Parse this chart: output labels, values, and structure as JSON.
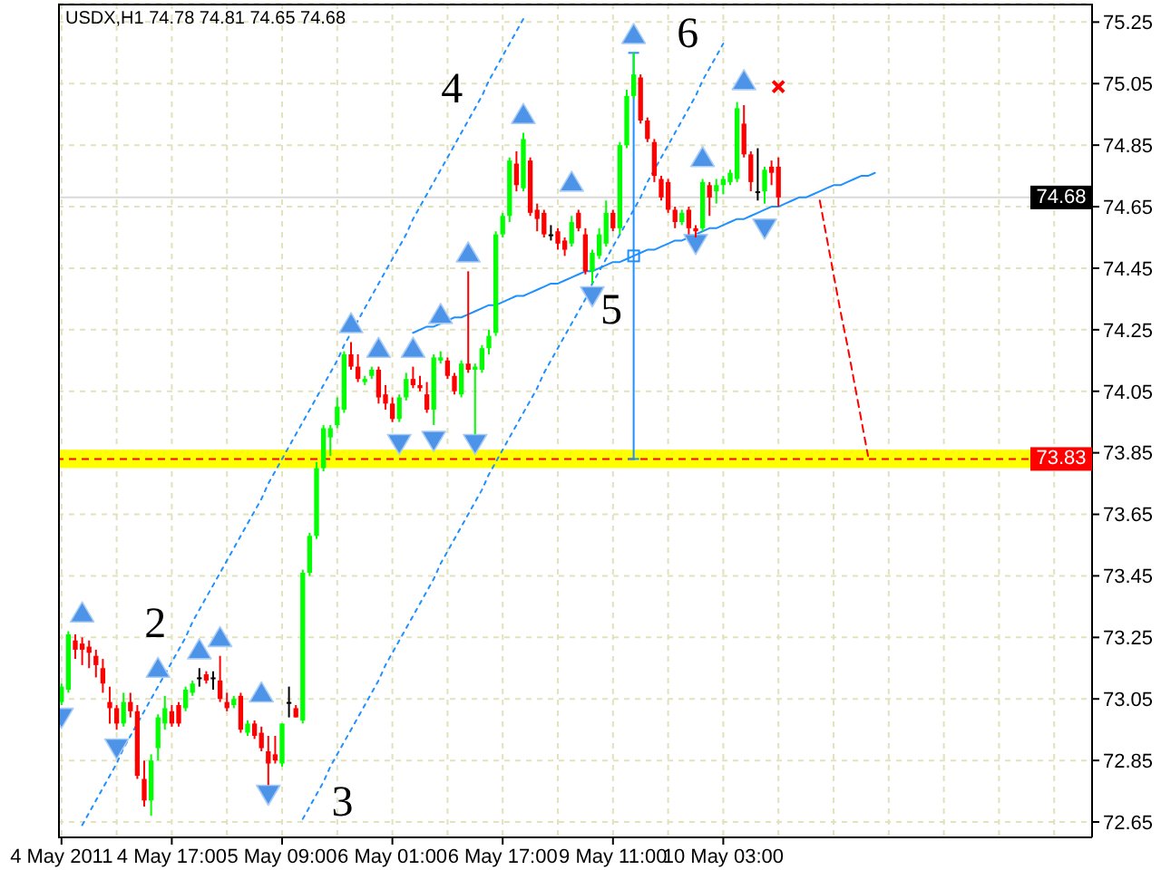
{
  "chart_data": {
    "type": "candlestick",
    "title": "USDX,H1  74.78 74.81 74.65 74.68",
    "categories": [
      "4 May 2011",
      null,
      null,
      null,
      null,
      null,
      null,
      null,
      null,
      null,
      null,
      null,
      null,
      null,
      null,
      null,
      "4 May 17:00",
      null,
      null,
      null,
      null,
      null,
      null,
      null,
      null,
      null,
      null,
      null,
      null,
      null,
      null,
      null,
      "5 May 09:00",
      null,
      null,
      null,
      null,
      null,
      null,
      null,
      null,
      null,
      null,
      null,
      null,
      null,
      null,
      null,
      "6 May 01:00",
      null,
      null,
      null,
      null,
      null,
      null,
      null,
      null,
      null,
      null,
      null,
      null,
      null,
      null,
      null,
      "6 May 17:00",
      null,
      null,
      null,
      null,
      null,
      null,
      null,
      null,
      null,
      null,
      null,
      null,
      null,
      null,
      null,
      "9 May 11:00",
      null,
      null,
      null,
      null,
      null,
      null,
      null,
      null,
      null,
      null,
      null,
      null,
      null,
      null,
      null,
      "10 May 03:00",
      null,
      null,
      null,
      null,
      null,
      null,
      null,
      null,
      null,
      null,
      null,
      null,
      null,
      null,
      null,
      null,
      null,
      null,
      null,
      null,
      null,
      null,
      null,
      null,
      null,
      null,
      null,
      null,
      null,
      null,
      null,
      null,
      null,
      null,
      null,
      null,
      null,
      null,
      null,
      null,
      null,
      null,
      null,
      null,
      null,
      null,
      null,
      null,
      null,
      null,
      null,
      null,
      null
    ],
    "ohlc": [
      [
        73.04,
        73.1,
        73.03,
        73.09
      ],
      [
        73.08,
        73.27,
        73.07,
        73.26
      ],
      [
        73.24,
        73.26,
        73.18,
        73.21
      ],
      [
        73.23,
        73.25,
        73.16,
        73.21
      ],
      [
        73.22,
        73.24,
        73.15,
        73.2
      ],
      [
        73.19,
        73.21,
        73.12,
        73.16
      ],
      [
        73.15,
        73.18,
        73.07,
        73.1
      ],
      [
        73.04,
        73.09,
        72.97,
        73.02
      ],
      [
        73.02,
        73.03,
        72.95,
        72.97
      ],
      [
        72.97,
        73.07,
        72.96,
        73.04
      ],
      [
        73.04,
        73.07,
        72.99,
        73.01
      ],
      [
        73.01,
        73.03,
        72.79,
        72.8
      ],
      [
        72.79,
        72.85,
        72.7,
        72.72
      ],
      [
        72.72,
        72.87,
        72.67,
        72.85
      ],
      [
        72.89,
        73.0,
        72.85,
        72.99
      ],
      [
        72.97,
        73.06,
        72.95,
        73.02
      ],
      [
        73.01,
        73.03,
        72.96,
        72.97
      ],
      [
        73.03,
        73.04,
        72.96,
        72.97
      ],
      [
        73.02,
        73.09,
        73.01,
        73.08
      ],
      [
        73.07,
        73.11,
        73.06,
        73.1
      ],
      [
        73.12,
        73.15,
        73.09,
        73.12
      ],
      [
        73.13,
        73.14,
        73.1,
        73.11
      ],
      [
        73.12,
        73.14,
        73.08,
        73.12
      ],
      [
        73.11,
        73.19,
        73.04,
        73.05
      ],
      [
        73.04,
        73.07,
        73.01,
        73.02
      ],
      [
        73.03,
        73.06,
        73.02,
        73.05
      ],
      [
        73.06,
        73.07,
        72.94,
        72.95
      ],
      [
        72.94,
        72.98,
        72.93,
        72.97
      ],
      [
        72.97,
        72.98,
        72.92,
        72.93
      ],
      [
        72.94,
        72.96,
        72.88,
        72.89
      ],
      [
        72.88,
        72.93,
        72.77,
        72.84
      ],
      [
        72.87,
        72.93,
        72.84,
        72.85
      ],
      [
        72.84,
        72.97,
        72.83,
        72.97
      ],
      [
        73.04,
        73.09,
        72.99,
        73.04
      ],
      [
        73.02,
        73.03,
        72.99,
        72.99
      ],
      [
        72.98,
        73.47,
        72.97,
        73.46
      ],
      [
        73.46,
        73.59,
        73.45,
        73.58
      ],
      [
        73.58,
        73.82,
        73.57,
        73.8
      ],
      [
        73.8,
        73.94,
        73.79,
        73.93
      ],
      [
        73.9,
        73.94,
        73.84,
        73.93
      ],
      [
        73.94,
        74.03,
        73.93,
        74.0
      ],
      [
        73.99,
        74.18,
        73.98,
        74.17
      ],
      [
        74.17,
        74.21,
        74.12,
        74.13
      ],
      [
        74.13,
        74.17,
        74.08,
        74.09
      ],
      [
        74.08,
        74.1,
        74.07,
        74.09
      ],
      [
        74.1,
        74.13,
        74.09,
        74.12
      ],
      [
        74.12,
        74.13,
        74.01,
        74.03
      ],
      [
        74.04,
        74.07,
        73.99,
        74.01
      ],
      [
        74.01,
        74.03,
        73.95,
        73.96
      ],
      [
        73.96,
        74.04,
        73.95,
        74.03
      ],
      [
        74.03,
        74.11,
        74.02,
        74.09
      ],
      [
        74.09,
        74.13,
        74.06,
        74.07
      ],
      [
        74.07,
        74.1,
        74.05,
        74.06
      ],
      [
        74.04,
        74.08,
        73.98,
        73.99
      ],
      [
        73.99,
        74.17,
        73.94,
        74.16
      ],
      [
        74.15,
        74.18,
        74.14,
        74.16
      ],
      [
        74.15,
        74.16,
        74.09,
        74.1
      ],
      [
        74.1,
        74.11,
        74.04,
        74.05
      ],
      [
        74.04,
        74.15,
        74.03,
        74.14
      ],
      [
        74.14,
        74.44,
        74.11,
        74.12
      ],
      [
        74.12,
        74.14,
        73.91,
        74.13
      ],
      [
        74.12,
        74.2,
        74.11,
        74.19
      ],
      [
        74.19,
        74.25,
        74.17,
        74.23
      ],
      [
        74.24,
        74.57,
        74.23,
        74.56
      ],
      [
        74.56,
        74.63,
        74.55,
        74.62
      ],
      [
        74.62,
        74.81,
        74.6,
        74.8
      ],
      [
        74.79,
        74.83,
        74.7,
        74.72
      ],
      [
        74.71,
        74.89,
        74.7,
        74.87
      ],
      [
        74.8,
        74.81,
        74.62,
        74.63
      ],
      [
        74.64,
        74.66,
        74.57,
        74.61
      ],
      [
        74.63,
        74.64,
        74.55,
        74.56
      ],
      [
        74.56,
        74.59,
        74.54,
        74.56
      ],
      [
        74.57,
        74.58,
        74.51,
        74.53
      ],
      [
        74.54,
        74.55,
        74.49,
        74.51
      ],
      [
        74.53,
        74.62,
        74.52,
        74.6
      ],
      [
        74.63,
        74.64,
        74.57,
        74.58
      ],
      [
        74.56,
        74.58,
        74.43,
        74.44
      ],
      [
        74.44,
        74.51,
        74.4,
        74.5
      ],
      [
        74.49,
        74.58,
        74.48,
        74.56
      ],
      [
        74.53,
        74.67,
        74.52,
        74.63
      ],
      [
        74.63,
        74.64,
        74.57,
        74.58
      ],
      [
        74.58,
        74.86,
        74.56,
        74.85
      ],
      [
        74.85,
        75.03,
        74.84,
        75.01
      ],
      [
        75.01,
        75.15,
        75.0,
        75.08
      ],
      [
        75.07,
        75.08,
        74.92,
        74.93
      ],
      [
        74.93,
        74.94,
        74.86,
        74.87
      ],
      [
        74.86,
        74.87,
        74.73,
        74.75
      ],
      [
        74.74,
        74.75,
        74.67,
        74.68
      ],
      [
        74.73,
        74.74,
        74.63,
        74.64
      ],
      [
        74.64,
        74.65,
        74.58,
        74.6
      ],
      [
        74.6,
        74.64,
        74.59,
        74.63
      ],
      [
        74.64,
        74.65,
        74.56,
        74.58
      ],
      [
        74.58,
        74.59,
        74.55,
        74.57
      ],
      [
        74.58,
        74.74,
        74.57,
        74.73
      ],
      [
        74.72,
        74.73,
        74.62,
        74.68
      ],
      [
        74.7,
        74.74,
        74.66,
        74.72
      ],
      [
        74.72,
        74.75,
        74.69,
        74.74
      ],
      [
        74.73,
        74.77,
        74.72,
        74.76
      ],
      [
        74.74,
        74.99,
        74.73,
        74.97
      ],
      [
        74.92,
        74.98,
        74.81,
        74.82
      ],
      [
        74.82,
        74.83,
        74.7,
        74.73
      ],
      [
        74.7,
        74.84,
        74.67,
        74.7
      ],
      [
        74.7,
        74.78,
        74.66,
        74.77
      ],
      [
        74.78,
        74.8,
        74.72,
        74.76
      ],
      [
        74.78,
        74.81,
        74.65,
        74.68
      ],
      null,
      null,
      null,
      null,
      null,
      null,
      null,
      null,
      null,
      null,
      null,
      null,
      null,
      null,
      null,
      null,
      null,
      null,
      null,
      null,
      null,
      null,
      null,
      null,
      null,
      null,
      null,
      null,
      null,
      null,
      null,
      null,
      null,
      null,
      null,
      null,
      null,
      null,
      null,
      null,
      null,
      null,
      null,
      null,
      null
    ],
    "colors": [
      "#00ff00",
      "#00ff00",
      "#ff0000",
      "#ff0000",
      "#ff0000",
      "#ff0000",
      "#ff0000",
      "#ff0000",
      "#ff0000",
      "#00ff00",
      "#ff0000",
      "#ff0000",
      "#ff0000",
      "#00ff00",
      "#00ff00",
      "#00ff00",
      "#ff0000",
      "#ff0000",
      "#00ff00",
      "#00ff00",
      "#000000",
      "#ff0000",
      "#000000",
      "#ff0000",
      "#ff0000",
      "#00ff00",
      "#ff0000",
      "#00ff00",
      "#ff0000",
      "#ff0000",
      "#ff0000",
      "#ff0000",
      "#00ff00",
      "#000000",
      "#ff0000",
      "#00ff00",
      "#00ff00",
      "#00ff00",
      "#00ff00",
      "#00ff00",
      "#00ff00",
      "#00ff00",
      "#ff0000",
      "#ff0000",
      "#00ff00",
      "#00ff00",
      "#ff0000",
      "#ff0000",
      "#ff0000",
      "#00ff00",
      "#00ff00",
      "#ff0000",
      "#ff0000",
      "#ff0000",
      "#00ff00",
      "#00ff00",
      "#ff0000",
      "#ff0000",
      "#00ff00",
      "#ff0000",
      "#00ff00",
      "#00ff00",
      "#00ff00",
      "#00ff00",
      "#00ff00",
      "#00ff00",
      "#ff0000",
      "#00ff00",
      "#ff0000",
      "#ff0000",
      "#ff0000",
      "#000000",
      "#ff0000",
      "#ff0000",
      "#00ff00",
      "#ff0000",
      "#ff0000",
      "#00ff00",
      "#00ff00",
      "#00ff00",
      "#ff0000",
      "#00ff00",
      "#00ff00",
      "#00ff00",
      "#ff0000",
      "#ff0000",
      "#ff0000",
      "#ff0000",
      "#ff0000",
      "#ff0000",
      "#00ff00",
      "#ff0000",
      "#ff0000",
      "#00ff00",
      "#ff0000",
      "#00ff00",
      "#00ff00",
      "#00ff00",
      "#00ff00",
      "#ff0000",
      "#ff0000",
      "#000000",
      "#00ff00",
      "#ff0000",
      "#ff0000",
      null,
      null,
      null,
      null,
      null,
      null,
      null,
      null,
      null,
      null,
      null,
      null,
      null,
      null,
      null,
      null,
      null,
      null,
      null,
      null,
      null,
      null,
      null,
      null,
      null,
      null,
      null,
      null,
      null,
      null,
      null,
      null,
      null,
      null,
      null,
      null,
      null,
      null,
      null,
      null,
      null,
      null,
      null,
      null,
      null
    ],
    "series": [
      {
        "type": "scatter",
        "color": "#4d94e8",
        "marker": "triangle",
        "values": [
          null,
          null,
          null,
          73.33,
          null,
          null,
          null,
          null,
          null,
          null,
          null,
          null,
          null,
          null,
          73.15,
          null,
          null,
          null,
          null,
          null,
          73.21,
          null,
          null,
          73.25,
          null,
          null,
          null,
          null,
          null,
          73.07,
          null,
          null,
          null,
          null,
          null,
          null,
          null,
          null,
          null,
          null,
          null,
          null,
          74.27,
          null,
          null,
          null,
          74.19,
          null,
          null,
          null,
          null,
          74.19,
          null,
          null,
          null,
          74.3,
          null,
          null,
          null,
          74.5,
          null,
          null,
          null,
          null,
          null,
          null,
          null,
          74.95,
          null,
          null,
          null,
          null,
          null,
          null,
          74.73,
          null,
          null,
          null,
          null,
          null,
          null,
          null,
          null,
          75.21,
          null,
          null,
          null,
          null,
          null,
          null,
          null,
          null,
          null,
          74.81,
          null,
          null,
          null,
          null,
          null,
          75.06,
          null,
          null,
          null,
          null,
          null,
          null,
          null,
          null,
          null,
          null,
          null,
          null,
          null,
          null,
          null,
          null,
          null,
          null,
          null,
          null,
          null,
          null,
          null,
          null,
          null,
          null,
          null,
          null,
          null,
          null,
          null,
          null,
          null,
          null,
          null,
          null,
          null,
          null,
          null,
          null,
          null,
          null,
          null,
          null,
          null,
          null,
          null,
          null,
          null,
          null
        ]
      },
      {
        "type": "scatter",
        "color": "#4d94e8",
        "marker": "triangle",
        "values": [
          72.99,
          null,
          null,
          null,
          null,
          null,
          null,
          null,
          72.89,
          null,
          null,
          null,
          null,
          null,
          null,
          null,
          null,
          null,
          null,
          null,
          null,
          null,
          null,
          null,
          null,
          null,
          null,
          null,
          null,
          null,
          72.74,
          null,
          null,
          null,
          null,
          null,
          null,
          null,
          null,
          null,
          null,
          null,
          null,
          null,
          null,
          null,
          null,
          null,
          null,
          73.88,
          null,
          null,
          null,
          null,
          73.89,
          null,
          null,
          null,
          null,
          null,
          73.88,
          null,
          null,
          null,
          null,
          null,
          null,
          null,
          null,
          null,
          null,
          null,
          null,
          null,
          null,
          null,
          null,
          74.36,
          null,
          null,
          null,
          null,
          null,
          null,
          null,
          null,
          null,
          null,
          null,
          null,
          null,
          null,
          74.53,
          null,
          null,
          null,
          null,
          null,
          null,
          null,
          null,
          null,
          74.58,
          null,
          null,
          null,
          null,
          null,
          null,
          null,
          null,
          null,
          null,
          null,
          null,
          null,
          null,
          null,
          null,
          null,
          null,
          null,
          null,
          null,
          null,
          null,
          null,
          null,
          null,
          null,
          null,
          null,
          null,
          null,
          null,
          null,
          null,
          null,
          null,
          null,
          null,
          null,
          null,
          null,
          null,
          null,
          null,
          null,
          null,
          null
        ]
      },
      {
        "type": "scatter",
        "color": "#ff0000",
        "marker": "cross",
        "values": [
          null,
          null,
          null,
          null,
          null,
          null,
          null,
          null,
          null,
          null,
          null,
          null,
          null,
          null,
          null,
          null,
          null,
          null,
          null,
          null,
          null,
          null,
          null,
          null,
          null,
          null,
          null,
          null,
          null,
          null,
          null,
          null,
          null,
          null,
          null,
          null,
          null,
          null,
          null,
          null,
          null,
          null,
          null,
          null,
          null,
          null,
          null,
          null,
          null,
          null,
          null,
          null,
          null,
          null,
          null,
          null,
          null,
          null,
          null,
          null,
          null,
          null,
          null,
          null,
          null,
          null,
          null,
          null,
          null,
          null,
          null,
          null,
          null,
          null,
          null,
          null,
          null,
          null,
          null,
          null,
          null,
          null,
          null,
          null,
          null,
          null,
          null,
          null,
          null,
          null,
          null,
          null,
          null,
          null,
          null,
          null,
          null,
          null,
          null,
          null,
          null,
          null,
          null,
          null,
          75.04,
          null,
          null,
          null,
          null,
          null,
          null,
          null,
          null,
          null,
          null,
          null,
          null,
          null,
          null,
          null,
          null,
          null,
          null,
          null,
          null,
          null,
          null,
          null,
          null,
          null,
          null,
          null,
          null,
          null,
          null,
          null,
          null,
          null,
          null,
          null,
          null,
          null,
          null,
          null,
          null,
          null,
          null,
          null,
          null,
          null
        ]
      },
      {
        "type": "line",
        "color": "#1e90ff",
        "line_style": "dotted",
        "values": [
          null,
          null,
          null,
          72.64,
          72.68,
          72.72,
          72.76,
          72.8,
          72.84,
          72.89,
          72.93,
          72.97,
          73.01,
          73.05,
          73.09,
          73.13,
          73.17,
          73.21,
          73.25,
          73.3,
          73.34,
          73.38,
          73.42,
          73.46,
          73.5,
          73.54,
          73.58,
          73.62,
          73.66,
          73.7,
          73.75,
          73.79,
          73.83,
          73.87,
          73.91,
          73.95,
          73.99,
          74.03,
          74.07,
          74.11,
          74.15,
          74.2,
          74.24,
          74.28,
          74.32,
          74.36,
          74.4,
          74.44,
          74.48,
          74.52,
          74.56,
          74.61,
          74.65,
          74.69,
          74.73,
          74.77,
          74.81,
          74.85,
          74.89,
          74.93,
          74.97,
          75.01,
          75.06,
          75.1,
          75.14,
          75.18,
          75.22,
          75.26,
          null,
          null,
          null,
          null,
          null,
          null,
          null,
          null,
          null,
          null,
          null,
          null,
          null,
          null,
          null,
          null,
          null,
          null,
          null,
          null,
          null,
          null,
          null,
          null,
          null,
          null,
          null,
          null,
          null,
          null,
          null,
          null,
          null,
          null,
          null,
          null,
          null,
          null,
          null,
          null,
          null,
          null,
          null,
          null,
          null,
          null,
          null,
          null,
          null,
          null,
          null,
          null,
          null,
          null,
          null,
          null,
          null,
          null,
          null,
          null,
          null,
          null,
          null,
          null,
          null,
          null,
          null,
          null,
          null,
          null,
          null,
          null,
          null,
          null,
          null,
          null,
          null,
          null,
          null,
          null,
          null,
          null
        ]
      },
      {
        "type": "line",
        "color": "#1e90ff",
        "line_style": "dotted",
        "values": [
          null,
          null,
          null,
          null,
          null,
          null,
          null,
          null,
          null,
          null,
          null,
          null,
          null,
          null,
          null,
          null,
          null,
          null,
          null,
          null,
          null,
          null,
          null,
          null,
          null,
          null,
          null,
          null,
          null,
          null,
          null,
          null,
          null,
          null,
          null,
          72.66,
          72.7,
          72.74,
          72.78,
          72.83,
          72.87,
          72.91,
          72.95,
          72.99,
          73.03,
          73.07,
          73.11,
          73.16,
          73.2,
          73.24,
          73.28,
          73.32,
          73.36,
          73.4,
          73.44,
          73.49,
          73.53,
          73.57,
          73.61,
          73.65,
          73.69,
          73.73,
          73.78,
          73.82,
          73.86,
          73.9,
          73.94,
          73.98,
          74.02,
          74.06,
          74.11,
          74.15,
          74.19,
          74.23,
          74.27,
          74.31,
          74.35,
          74.4,
          74.44,
          74.48,
          74.52,
          74.56,
          74.6,
          74.64,
          74.68,
          74.73,
          74.77,
          74.81,
          74.85,
          74.89,
          74.93,
          74.97,
          75.01,
          75.06,
          75.1,
          75.14,
          75.18,
          null,
          null,
          null,
          null,
          null,
          null,
          null,
          null,
          null,
          null,
          null,
          null,
          null,
          null,
          null,
          null,
          null,
          null,
          null,
          null,
          null,
          null,
          null,
          null,
          null,
          null,
          null,
          null,
          null,
          null,
          null,
          null,
          null,
          null,
          null,
          null,
          null,
          null,
          null,
          null,
          null,
          null,
          null,
          null,
          null,
          null,
          null,
          null,
          null,
          null,
          null,
          null,
          null
        ]
      },
      {
        "type": "line",
        "color": "#1e90ff",
        "line_style": "solid",
        "values": [
          null,
          null,
          null,
          null,
          null,
          null,
          null,
          null,
          null,
          null,
          null,
          null,
          null,
          null,
          null,
          null,
          null,
          null,
          null,
          null,
          null,
          null,
          null,
          null,
          null,
          null,
          null,
          null,
          null,
          null,
          null,
          null,
          null,
          null,
          null,
          null,
          null,
          null,
          null,
          null,
          null,
          null,
          null,
          null,
          null,
          null,
          null,
          null,
          null,
          null,
          null,
          74.24,
          74.25,
          74.26,
          74.26,
          74.27,
          74.28,
          74.29,
          74.29,
          74.3,
          74.31,
          74.32,
          74.33,
          74.33,
          74.34,
          74.35,
          74.36,
          74.36,
          74.37,
          74.38,
          74.39,
          74.4,
          74.4,
          74.41,
          74.42,
          74.43,
          74.44,
          74.44,
          74.45,
          74.46,
          74.47,
          74.47,
          74.48,
          74.49,
          74.5,
          74.51,
          74.51,
          74.52,
          74.53,
          74.54,
          74.54,
          74.55,
          74.56,
          74.57,
          74.58,
          74.58,
          74.59,
          74.6,
          74.61,
          74.61,
          74.62,
          74.63,
          74.64,
          74.65,
          74.65,
          74.66,
          74.67,
          74.68,
          74.68,
          74.69,
          74.7,
          74.71,
          74.72,
          74.72,
          74.73,
          74.74,
          74.75,
          74.75,
          74.76,
          null,
          null,
          null,
          null,
          null,
          null,
          null,
          null,
          null,
          null,
          null,
          null,
          null,
          null,
          null,
          null,
          null,
          null,
          null,
          null,
          null,
          null,
          null,
          null,
          null,
          null,
          null,
          null,
          null,
          null,
          null
        ]
      },
      {
        "type": "scatter",
        "color": "#1e90ff",
        "marker": "square",
        "values": [
          null,
          null,
          null,
          null,
          null,
          null,
          null,
          null,
          null,
          null,
          null,
          null,
          null,
          null,
          null,
          null,
          null,
          null,
          null,
          null,
          null,
          null,
          null,
          null,
          null,
          null,
          null,
          null,
          null,
          null,
          null,
          null,
          null,
          null,
          null,
          null,
          null,
          null,
          null,
          null,
          null,
          null,
          null,
          null,
          null,
          null,
          null,
          null,
          null,
          null,
          null,
          null,
          null,
          null,
          null,
          null,
          null,
          null,
          null,
          null,
          null,
          null,
          null,
          null,
          null,
          null,
          null,
          null,
          null,
          null,
          null,
          null,
          null,
          null,
          null,
          null,
          null,
          null,
          null,
          null,
          null,
          null,
          null,
          74.49,
          null,
          null,
          null,
          null,
          null,
          null,
          null,
          null,
          null,
          null,
          null,
          null,
          null,
          null,
          null,
          null,
          null,
          null,
          null,
          null,
          null,
          null,
          null,
          null,
          null,
          null,
          null,
          null,
          null,
          null,
          null,
          null,
          null,
          null,
          null,
          null,
          null,
          null,
          null,
          null,
          null,
          null,
          null,
          null,
          null,
          null,
          null,
          null,
          null,
          null,
          null,
          null,
          null,
          null,
          null,
          null,
          null,
          null,
          null,
          null,
          null,
          null,
          null,
          null,
          null,
          null
        ],
        "errors": [
          null,
          null,
          null,
          null,
          null,
          null,
          null,
          null,
          null,
          null,
          null,
          null,
          null,
          null,
          null,
          null,
          null,
          null,
          null,
          null,
          null,
          null,
          null,
          null,
          null,
          null,
          null,
          null,
          null,
          null,
          null,
          null,
          null,
          null,
          null,
          null,
          null,
          null,
          null,
          null,
          null,
          null,
          null,
          null,
          null,
          null,
          null,
          null,
          null,
          null,
          null,
          null,
          null,
          null,
          null,
          null,
          null,
          null,
          null,
          null,
          null,
          null,
          null,
          null,
          null,
          null,
          null,
          null,
          null,
          null,
          null,
          null,
          null,
          null,
          null,
          null,
          null,
          null,
          null,
          null,
          null,
          null,
          null,
          0.66,
          null,
          null,
          null,
          null,
          null,
          null,
          null,
          null,
          null,
          null,
          null,
          null,
          null,
          null,
          null,
          null,
          null,
          null,
          null,
          null,
          null,
          null,
          null,
          null,
          null,
          null,
          null,
          null,
          null,
          null,
          null,
          null,
          null,
          null,
          null,
          null,
          null,
          null,
          null,
          null,
          null,
          null,
          null,
          null,
          null,
          null,
          null,
          null,
          null,
          null,
          null,
          null,
          null,
          null,
          null,
          null,
          null,
          null,
          null,
          null,
          null,
          null,
          null,
          null,
          null,
          null
        ]
      },
      {
        "type": "line",
        "color": "#ff0000",
        "line_style": "dashed",
        "values": [
          null,
          null,
          null,
          null,
          null,
          null,
          null,
          null,
          null,
          null,
          null,
          null,
          null,
          null,
          null,
          null,
          null,
          null,
          null,
          null,
          null,
          null,
          null,
          null,
          null,
          null,
          null,
          null,
          null,
          null,
          null,
          null,
          null,
          null,
          null,
          null,
          null,
          null,
          null,
          null,
          null,
          null,
          null,
          null,
          null,
          null,
          null,
          null,
          null,
          null,
          null,
          null,
          null,
          null,
          null,
          null,
          null,
          null,
          null,
          null,
          null,
          null,
          null,
          null,
          null,
          null,
          null,
          null,
          null,
          null,
          null,
          null,
          null,
          null,
          null,
          null,
          null,
          null,
          null,
          null,
          null,
          null,
          null,
          null,
          null,
          null,
          null,
          null,
          null,
          null,
          null,
          null,
          null,
          null,
          null,
          null,
          null,
          null,
          null,
          null,
          null,
          null,
          null,
          null,
          null,
          null,
          null,
          null,
          null,
          null,
          74.67,
          74.55,
          74.43,
          74.31,
          74.2,
          74.08,
          73.96,
          73.84,
          null,
          null,
          null,
          null,
          null,
          null,
          null,
          null,
          null,
          null,
          null,
          null,
          null,
          null,
          null,
          null,
          null,
          null,
          null,
          null,
          null,
          null,
          null,
          null,
          null,
          null,
          null,
          null,
          null,
          null,
          null,
          null
        ]
      }
    ],
    "ylim": [
      72.6,
      75.31
    ],
    "yticks": [
      72.65,
      72.85,
      73.05,
      73.25,
      73.45,
      73.65,
      73.85,
      74.05,
      74.25,
      74.45,
      74.65,
      74.85,
      75.05,
      75.25
    ],
    "grid": true,
    "annotations": [
      "2",
      "3",
      "4",
      "5",
      "6"
    ],
    "ref_lines": [
      {
        "axis": "y",
        "value": 73.83,
        "label": "73.83",
        "color": "#ff0000",
        "line_style": "dashed"
      },
      {
        "axis": "y",
        "value": 74.68,
        "label": "74.68",
        "color": "#000000"
      }
    ],
    "bands": [
      {
        "axis": "y",
        "from": 73.8,
        "to": 73.86,
        "color": "#ffff00"
      }
    ]
  }
}
